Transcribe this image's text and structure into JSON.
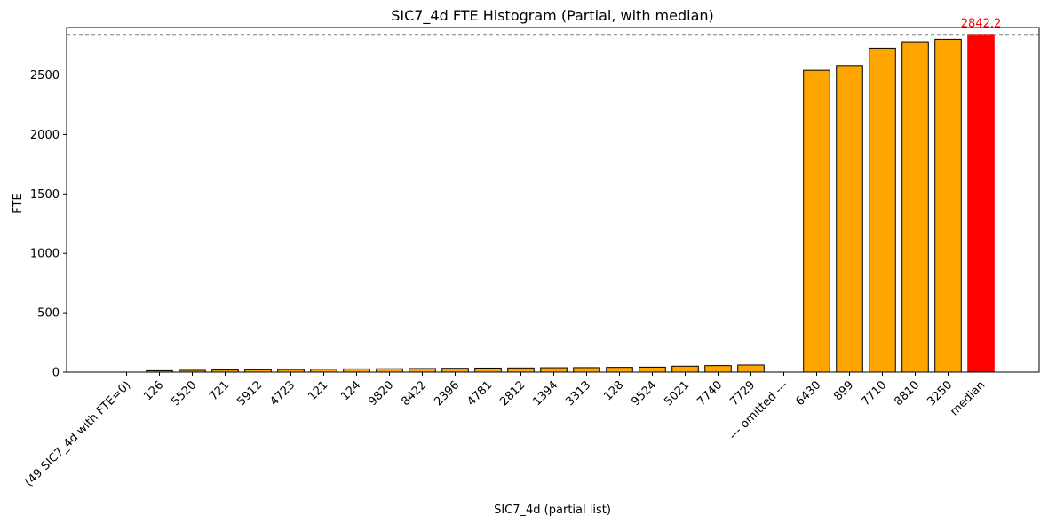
{
  "chart_data": {
    "type": "bar",
    "title": "SIC7_4d FTE Histogram (Partial, with median)",
    "xlabel": "SIC7_4d (partial list)",
    "ylabel": "FTE",
    "ylim": [
      0,
      2900
    ],
    "yticks": [
      0,
      500,
      1000,
      1500,
      2000,
      2500
    ],
    "categories": [
      "(49 SIC7_4d with FTE=0)",
      "126",
      "5520",
      "721",
      "5912",
      "4723",
      "121",
      "124",
      "9820",
      "8422",
      "2396",
      "4781",
      "2812",
      "1394",
      "3313",
      "128",
      "9524",
      "5021",
      "7740",
      "7729",
      "--- omitted ---",
      "6430",
      "899",
      "7710",
      "8810",
      "3250",
      "median"
    ],
    "values": [
      0,
      12,
      15,
      18,
      20,
      22,
      25,
      27,
      28,
      30,
      32,
      34,
      35,
      37,
      38,
      40,
      42,
      50,
      55,
      60,
      0,
      2540,
      2580,
      2725,
      2780,
      2800,
      2842.2
    ],
    "bar_color": "#ffa500",
    "highlight_color": "#ff0000",
    "highlight_category": "median",
    "reference_line": {
      "value": 2842.2,
      "style": "dashed",
      "color": "#808080"
    },
    "annotation": {
      "text": "2842.2",
      "category": "median",
      "color": "#ff0000"
    },
    "grid": false
  }
}
